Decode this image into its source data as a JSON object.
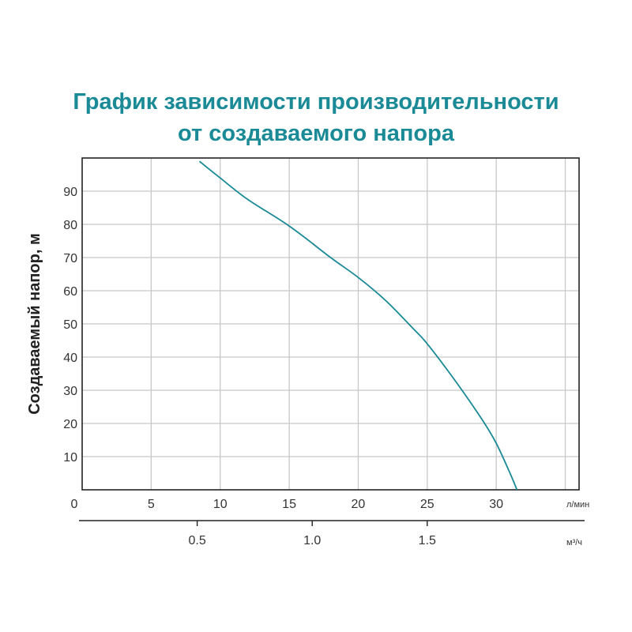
{
  "chart_data": {
    "type": "line",
    "title_line1": "График зависимости производительности",
    "title_line2": "от создаваемого напора",
    "ylabel": "Создаваемый напор, м",
    "x_unit": "л/мин",
    "x2_unit": "м³/ч",
    "xlim": [
      0,
      36
    ],
    "ylim": [
      0,
      100
    ],
    "x_ticks": [
      0,
      5,
      10,
      15,
      20,
      25,
      30
    ],
    "y_ticks": [
      10,
      20,
      30,
      40,
      50,
      60,
      70,
      80,
      90
    ],
    "x2_ticks": [
      {
        "label": "0.5",
        "value": 0.5
      },
      {
        "label": "1.0",
        "value": 1.0
      },
      {
        "label": "1.5",
        "value": 1.5
      }
    ],
    "series": [
      {
        "color": "#1a8a96",
        "x": [
          8.5,
          10,
          12,
          15,
          18,
          20,
          22,
          24,
          25,
          27,
          29,
          30,
          31,
          31.5
        ],
        "y": [
          99,
          94,
          87.5,
          79.5,
          70,
          64,
          57,
          48.5,
          44,
          33,
          21,
          14,
          5,
          0
        ]
      }
    ]
  }
}
